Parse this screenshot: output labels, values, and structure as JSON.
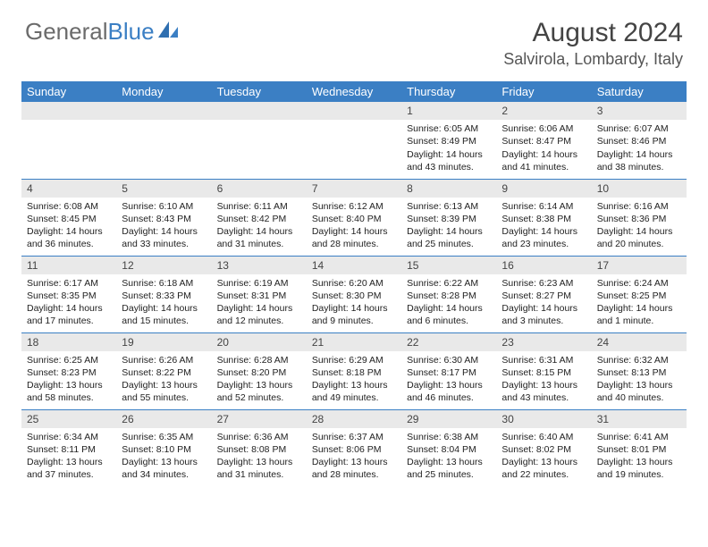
{
  "logo": {
    "text_gray": "General",
    "text_blue": "Blue"
  },
  "header": {
    "month": "August 2024",
    "location": "Salvirola, Lombardy, Italy"
  },
  "colors": {
    "accent": "#3b7fc4",
    "header_text": "#ffffff",
    "daybar_bg": "#e9e9e9",
    "body_text": "#222222"
  },
  "weekdays": [
    "Sunday",
    "Monday",
    "Tuesday",
    "Wednesday",
    "Thursday",
    "Friday",
    "Saturday"
  ],
  "weeks": [
    [
      null,
      null,
      null,
      null,
      {
        "n": "1",
        "sr": "Sunrise: 6:05 AM",
        "ss": "Sunset: 8:49 PM",
        "d1": "Daylight: 14 hours",
        "d2": "and 43 minutes."
      },
      {
        "n": "2",
        "sr": "Sunrise: 6:06 AM",
        "ss": "Sunset: 8:47 PM",
        "d1": "Daylight: 14 hours",
        "d2": "and 41 minutes."
      },
      {
        "n": "3",
        "sr": "Sunrise: 6:07 AM",
        "ss": "Sunset: 8:46 PM",
        "d1": "Daylight: 14 hours",
        "d2": "and 38 minutes."
      }
    ],
    [
      {
        "n": "4",
        "sr": "Sunrise: 6:08 AM",
        "ss": "Sunset: 8:45 PM",
        "d1": "Daylight: 14 hours",
        "d2": "and 36 minutes."
      },
      {
        "n": "5",
        "sr": "Sunrise: 6:10 AM",
        "ss": "Sunset: 8:43 PM",
        "d1": "Daylight: 14 hours",
        "d2": "and 33 minutes."
      },
      {
        "n": "6",
        "sr": "Sunrise: 6:11 AM",
        "ss": "Sunset: 8:42 PM",
        "d1": "Daylight: 14 hours",
        "d2": "and 31 minutes."
      },
      {
        "n": "7",
        "sr": "Sunrise: 6:12 AM",
        "ss": "Sunset: 8:40 PM",
        "d1": "Daylight: 14 hours",
        "d2": "and 28 minutes."
      },
      {
        "n": "8",
        "sr": "Sunrise: 6:13 AM",
        "ss": "Sunset: 8:39 PM",
        "d1": "Daylight: 14 hours",
        "d2": "and 25 minutes."
      },
      {
        "n": "9",
        "sr": "Sunrise: 6:14 AM",
        "ss": "Sunset: 8:38 PM",
        "d1": "Daylight: 14 hours",
        "d2": "and 23 minutes."
      },
      {
        "n": "10",
        "sr": "Sunrise: 6:16 AM",
        "ss": "Sunset: 8:36 PM",
        "d1": "Daylight: 14 hours",
        "d2": "and 20 minutes."
      }
    ],
    [
      {
        "n": "11",
        "sr": "Sunrise: 6:17 AM",
        "ss": "Sunset: 8:35 PM",
        "d1": "Daylight: 14 hours",
        "d2": "and 17 minutes."
      },
      {
        "n": "12",
        "sr": "Sunrise: 6:18 AM",
        "ss": "Sunset: 8:33 PM",
        "d1": "Daylight: 14 hours",
        "d2": "and 15 minutes."
      },
      {
        "n": "13",
        "sr": "Sunrise: 6:19 AM",
        "ss": "Sunset: 8:31 PM",
        "d1": "Daylight: 14 hours",
        "d2": "and 12 minutes."
      },
      {
        "n": "14",
        "sr": "Sunrise: 6:20 AM",
        "ss": "Sunset: 8:30 PM",
        "d1": "Daylight: 14 hours",
        "d2": "and 9 minutes."
      },
      {
        "n": "15",
        "sr": "Sunrise: 6:22 AM",
        "ss": "Sunset: 8:28 PM",
        "d1": "Daylight: 14 hours",
        "d2": "and 6 minutes."
      },
      {
        "n": "16",
        "sr": "Sunrise: 6:23 AM",
        "ss": "Sunset: 8:27 PM",
        "d1": "Daylight: 14 hours",
        "d2": "and 3 minutes."
      },
      {
        "n": "17",
        "sr": "Sunrise: 6:24 AM",
        "ss": "Sunset: 8:25 PM",
        "d1": "Daylight: 14 hours",
        "d2": "and 1 minute."
      }
    ],
    [
      {
        "n": "18",
        "sr": "Sunrise: 6:25 AM",
        "ss": "Sunset: 8:23 PM",
        "d1": "Daylight: 13 hours",
        "d2": "and 58 minutes."
      },
      {
        "n": "19",
        "sr": "Sunrise: 6:26 AM",
        "ss": "Sunset: 8:22 PM",
        "d1": "Daylight: 13 hours",
        "d2": "and 55 minutes."
      },
      {
        "n": "20",
        "sr": "Sunrise: 6:28 AM",
        "ss": "Sunset: 8:20 PM",
        "d1": "Daylight: 13 hours",
        "d2": "and 52 minutes."
      },
      {
        "n": "21",
        "sr": "Sunrise: 6:29 AM",
        "ss": "Sunset: 8:18 PM",
        "d1": "Daylight: 13 hours",
        "d2": "and 49 minutes."
      },
      {
        "n": "22",
        "sr": "Sunrise: 6:30 AM",
        "ss": "Sunset: 8:17 PM",
        "d1": "Daylight: 13 hours",
        "d2": "and 46 minutes."
      },
      {
        "n": "23",
        "sr": "Sunrise: 6:31 AM",
        "ss": "Sunset: 8:15 PM",
        "d1": "Daylight: 13 hours",
        "d2": "and 43 minutes."
      },
      {
        "n": "24",
        "sr": "Sunrise: 6:32 AM",
        "ss": "Sunset: 8:13 PM",
        "d1": "Daylight: 13 hours",
        "d2": "and 40 minutes."
      }
    ],
    [
      {
        "n": "25",
        "sr": "Sunrise: 6:34 AM",
        "ss": "Sunset: 8:11 PM",
        "d1": "Daylight: 13 hours",
        "d2": "and 37 minutes."
      },
      {
        "n": "26",
        "sr": "Sunrise: 6:35 AM",
        "ss": "Sunset: 8:10 PM",
        "d1": "Daylight: 13 hours",
        "d2": "and 34 minutes."
      },
      {
        "n": "27",
        "sr": "Sunrise: 6:36 AM",
        "ss": "Sunset: 8:08 PM",
        "d1": "Daylight: 13 hours",
        "d2": "and 31 minutes."
      },
      {
        "n": "28",
        "sr": "Sunrise: 6:37 AM",
        "ss": "Sunset: 8:06 PM",
        "d1": "Daylight: 13 hours",
        "d2": "and 28 minutes."
      },
      {
        "n": "29",
        "sr": "Sunrise: 6:38 AM",
        "ss": "Sunset: 8:04 PM",
        "d1": "Daylight: 13 hours",
        "d2": "and 25 minutes."
      },
      {
        "n": "30",
        "sr": "Sunrise: 6:40 AM",
        "ss": "Sunset: 8:02 PM",
        "d1": "Daylight: 13 hours",
        "d2": "and 22 minutes."
      },
      {
        "n": "31",
        "sr": "Sunrise: 6:41 AM",
        "ss": "Sunset: 8:01 PM",
        "d1": "Daylight: 13 hours",
        "d2": "and 19 minutes."
      }
    ]
  ]
}
